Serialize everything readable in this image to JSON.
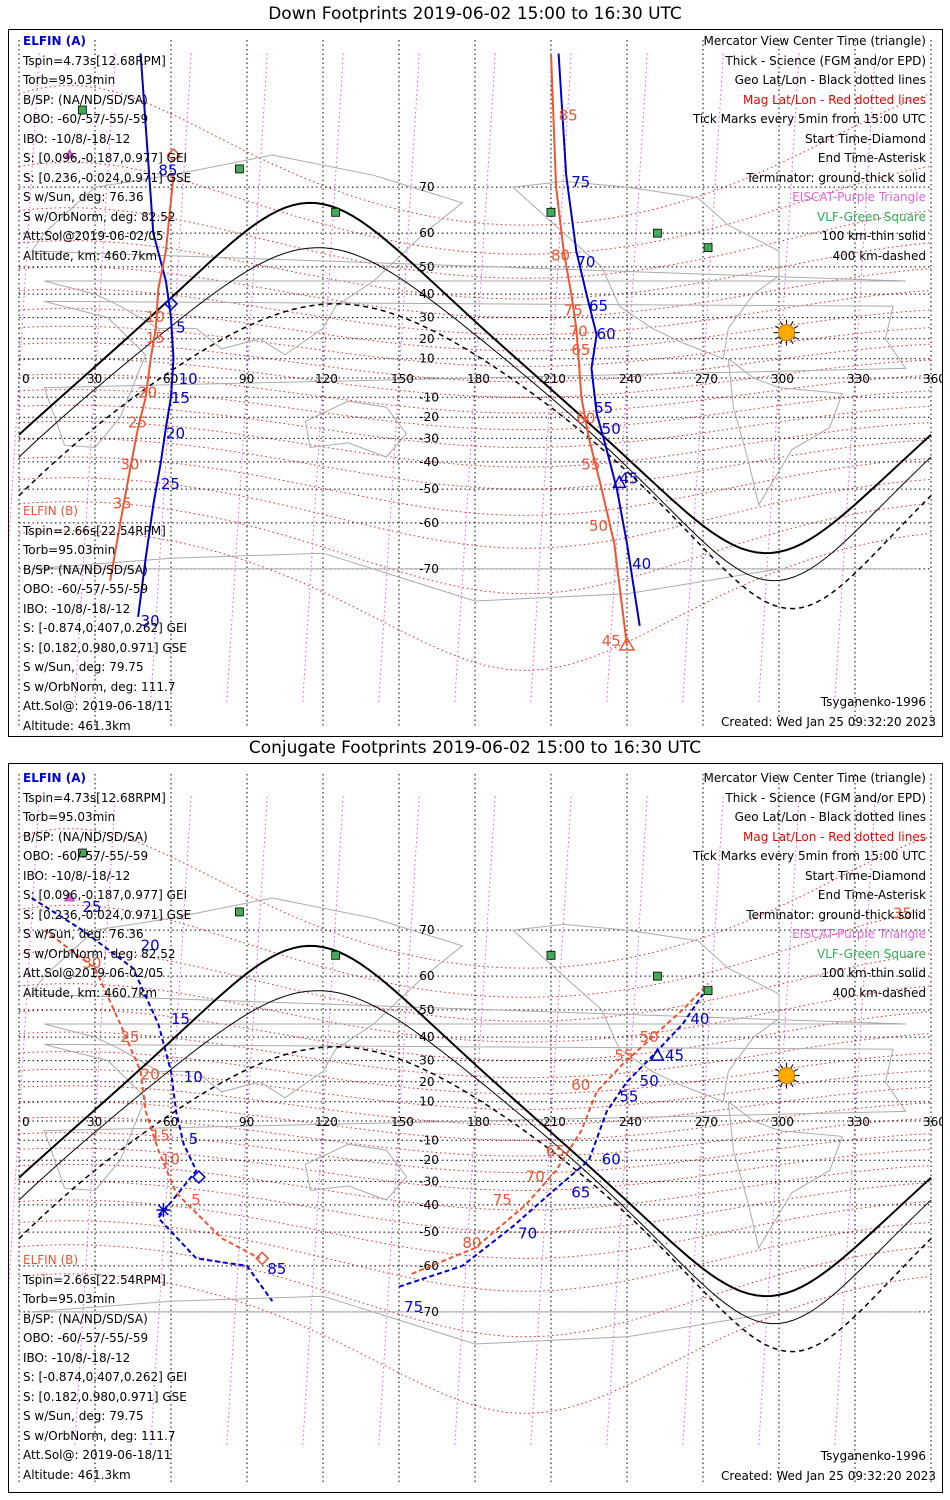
{
  "panels": [
    {
      "title": "Down Footprints 2019-06-02 15:00 to 16:30 UTC",
      "x_ticks": [
        "0",
        "30",
        "60",
        "90",
        "120",
        "150",
        "180",
        "210",
        "240",
        "270",
        "300",
        "330",
        "360"
      ],
      "y_ticks": [
        "70",
        "60",
        "50",
        "40",
        "30",
        "20",
        "10",
        "-10",
        "-20",
        "-30",
        "-40",
        "-50",
        "-60",
        "-70"
      ],
      "elfin_a": {
        "name": "ELFIN (A)",
        "lines": [
          "Tspin=4.73s[12.68RPM]",
          "Torb=95.03min",
          "B/SP: (NA/ND/SD/SA)",
          "OBO: -60/-57/-55/-59",
          "IBO: -10/8/-18/-12",
          "S: [0.096,-0.187,0.977] GEI",
          "S: [0.236,-0.024,0.971] GSE",
          "S w/Sun, deg: 76.36",
          "S w/OrbNorm, deg: 82.52",
          "Att.Sol@2019-06-02/05",
          "Altitude, km: 460.7km"
        ]
      },
      "elfin_b": {
        "name": "ELFIN (B)",
        "lines": [
          "Tspin=2.66s[22.54RPM]",
          "Torb=95.03min",
          "B/SP: (NA/ND/SD/SA)",
          "OBO: -60/-57/-55/-59",
          "IBO: -10/8/-18/-12",
          "S: [-0.874,0.407,0.262] GEI",
          "S: [0.182,0.980,0.971] GSE",
          "S w/Sun, deg: 79.75",
          "S w/OrbNorm, deg: 111.7",
          "Att.Sol@: 2019-06-18/11",
          "Altitude: 461.3km"
        ]
      },
      "legend": [
        {
          "text": "Mercator View Center Time (triangle)",
          "color": "#000000"
        },
        {
          "text": "Thick - Science (FGM and/or EPD)",
          "color": "#000000"
        },
        {
          "text": "Geo Lat/Lon - Black dotted lines",
          "color": "#000000"
        },
        {
          "text": "Mag Lat/Lon - Red dotted lines",
          "color": "#ee0000"
        },
        {
          "text": "Tick Marks every 5min from 15:00 UTC",
          "color": "#000000"
        },
        {
          "text": "Start Time-Diamond",
          "color": "#000000"
        },
        {
          "text": "End Time-Asterisk",
          "color": "#000000"
        },
        {
          "text": "Terminator: ground-thick solid",
          "color": "#000000"
        },
        {
          "text": "EISCAT-Purple Triangle",
          "color": "#dd66dd"
        },
        {
          "text": "VLF-Green Square",
          "color": "#33aa55"
        },
        {
          "text": "100 km-thin solid",
          "color": "#000000"
        },
        {
          "text": "400 km-dashed",
          "color": "#000000"
        }
      ],
      "footer_left": "Tsyganenko-1996",
      "footer_right": "Created: Wed Jan 25 09:32:20 2023"
    },
    {
      "title": "Conjugate Footprints 2019-06-02 15:00 to 16:30 UTC",
      "x_ticks": [
        "0",
        "30",
        "60",
        "90",
        "120",
        "150",
        "180",
        "210",
        "240",
        "270",
        "300",
        "330",
        "360"
      ],
      "y_ticks": [
        "70",
        "60",
        "50",
        "40",
        "30",
        "20",
        "10",
        "-10",
        "-20",
        "-30",
        "-40",
        "-50",
        "-60",
        "-70"
      ],
      "elfin_a": {
        "name": "ELFIN (A)",
        "lines": [
          "Tspin=4.73s[12.68RPM]",
          "Torb=95.03min",
          "B/SP: (NA/ND/SD/SA)",
          "OBO: -60/-57/-55/-59",
          "IBO: -10/8/-18/-12",
          "S: [0.096,-0.187,0.977] GEI",
          "S: [0.236,-0.024,0.971] GSE",
          "S w/Sun, deg: 76.36",
          "S w/OrbNorm, deg: 82.52",
          "Att.Sol@2019-06-02/05",
          "Altitude, km: 460.7km"
        ]
      },
      "elfin_b": {
        "name": "ELFIN (B)",
        "lines": [
          "Tspin=2.66s[22.54RPM]",
          "Torb=95.03min",
          "B/SP: (NA/ND/SD/SA)",
          "OBO: -60/-57/-55/-59",
          "IBO: -10/8/-18/-12",
          "S: [-0.874,0.407,0.262] GEI",
          "S: [0.182,0.980,0.971] GSE",
          "S w/Sun, deg: 79.75",
          "S w/OrbNorm, deg: 111.7",
          "Att.Sol@: 2019-06-18/11",
          "Altitude: 461.3km"
        ]
      },
      "legend": [
        {
          "text": "Mercator View Center Time (triangle)",
          "color": "#000000"
        },
        {
          "text": "Thick - Science (FGM and/or EPD)",
          "color": "#000000"
        },
        {
          "text": "Geo Lat/Lon - Black dotted lines",
          "color": "#000000"
        },
        {
          "text": "Mag Lat/Lon - Red dotted lines",
          "color": "#ee0000"
        },
        {
          "text": "Tick Marks every 5min from 15:00 UTC",
          "color": "#000000"
        },
        {
          "text": "Start Time-Diamond",
          "color": "#000000"
        },
        {
          "text": "End Time-Asterisk",
          "color": "#000000"
        },
        {
          "text": "Terminator: ground-thick solid",
          "color": "#000000"
        },
        {
          "text": "EISCAT-Purple Triangle",
          "color": "#dd66dd"
        },
        {
          "text": "VLF-Green Square",
          "color": "#33aa55"
        },
        {
          "text": "100 km-thin solid",
          "color": "#000000"
        },
        {
          "text": "400 km-dashed",
          "color": "#000000"
        }
      ],
      "footer_left": "Tsyganenko-1996",
      "footer_right": "Created: Wed Jan 25 09:32:20 2023"
    }
  ],
  "chart_data": [
    {
      "type": "scatter",
      "title": "Down Footprints 2019-06-02 15:00 to 16:30 UTC",
      "xlabel": "",
      "ylabel": "",
      "xlim": [
        0,
        360
      ],
      "ylim": [
        -80,
        80
      ],
      "grid": true,
      "legend_position": "top-right",
      "series": [
        {
          "name": "ELFIN (A)",
          "color": "#0000cc",
          "points": [
            [
              46,
              85
            ],
            [
              52,
              50
            ],
            [
              60,
              35
            ],
            [
              60,
              15
            ],
            [
              60,
              0
            ],
            [
              58,
              -10
            ],
            [
              57,
              -20
            ],
            [
              55,
              -30
            ],
            [
              53,
              -40
            ],
            [
              50,
              -55
            ],
            [
              47,
              -70
            ],
            [
              45,
              -78
            ]
          ],
          "tick_labels": [
            {
              "t": "85",
              "lon": 55,
              "lat": 72
            },
            {
              "t": "5",
              "lon": 62,
              "lat": 23
            },
            {
              "t": "10",
              "lon": 63,
              "lat": -3
            },
            {
              "t": "15",
              "lon": 60,
              "lat": -13
            },
            {
              "t": "20",
              "lon": 58,
              "lat": -30
            },
            {
              "t": "25",
              "lon": 56,
              "lat": -50
            },
            {
              "t": "30",
              "lon": 48,
              "lat": -78
            },
            {
              "t": "75",
              "lon": 218,
              "lat": 70
            },
            {
              "t": "70",
              "lon": 220,
              "lat": 50
            },
            {
              "t": "65",
              "lon": 225,
              "lat": 33
            },
            {
              "t": "60",
              "lon": 228,
              "lat": 20
            },
            {
              "t": "55",
              "lon": 227,
              "lat": -18
            },
            {
              "t": "50",
              "lon": 230,
              "lat": -28
            },
            {
              "t": "45",
              "lon": 237,
              "lat": -48
            },
            {
              "t": "40",
              "lon": 242,
              "lat": -70
            }
          ]
        },
        {
          "name": "ELFIN (B)",
          "color": "#ee5533",
          "points": [
            [
              60,
              66
            ],
            [
              58,
              55
            ],
            [
              55,
              40
            ],
            [
              52,
              25
            ],
            [
              50,
              15
            ],
            [
              45,
              0
            ],
            [
              42,
              -20
            ],
            [
              39,
              -40
            ],
            [
              35,
              -60
            ],
            [
              32,
              -75
            ]
          ],
          "tick_labels": [
            {
              "t": "10",
              "lon": 50,
              "lat": 28
            },
            {
              "t": "15",
              "lon": 50,
              "lat": 18
            },
            {
              "t": "20",
              "lon": 47,
              "lat": -10
            },
            {
              "t": "25",
              "lon": 43,
              "lat": -25
            },
            {
              "t": "30",
              "lon": 40,
              "lat": -43
            },
            {
              "t": "35",
              "lon": 37,
              "lat": -56
            },
            {
              "t": "85",
              "lon": 213,
              "lat": 79
            },
            {
              "t": "80",
              "lon": 210,
              "lat": 52
            },
            {
              "t": "75",
              "lon": 215,
              "lat": 31
            },
            {
              "t": "70",
              "lon": 217,
              "lat": 21
            },
            {
              "t": "65",
              "lon": 218,
              "lat": 12
            },
            {
              "t": "60",
              "lon": 220,
              "lat": -23
            },
            {
              "t": "55",
              "lon": 222,
              "lat": -43
            },
            {
              "t": "50",
              "lon": 225,
              "lat": -62
            },
            {
              "t": "45",
              "lon": 230,
              "lat": -80
            }
          ]
        }
      ]
    },
    {
      "type": "scatter",
      "title": "Conjugate Footprints 2019-06-02 15:00 to 16:30 UTC",
      "xlabel": "",
      "ylabel": "",
      "xlim": [
        0,
        360
      ],
      "ylim": [
        -80,
        80
      ],
      "grid": true,
      "legend_position": "top-right",
      "series": [
        {
          "name": "ELFIN (A)",
          "color": "#0000cc",
          "tick_labels": [
            {
              "t": "25",
              "lon": 25,
              "lat": 73
            },
            {
              "t": "20",
              "lon": 48,
              "lat": 66
            },
            {
              "t": "15",
              "lon": 60,
              "lat": 45
            },
            {
              "t": "10",
              "lon": 65,
              "lat": 20
            },
            {
              "t": "5",
              "lon": 67,
              "lat": -12
            },
            {
              "t": "85",
              "lon": 98,
              "lat": -62
            },
            {
              "t": "75",
              "lon": 152,
              "lat": -70
            },
            {
              "t": "70",
              "lon": 197,
              "lat": -52
            },
            {
              "t": "65",
              "lon": 218,
              "lat": -37
            },
            {
              "t": "60",
              "lon": 230,
              "lat": -22
            },
            {
              "t": "55",
              "lon": 237,
              "lat": 10
            },
            {
              "t": "50",
              "lon": 245,
              "lat": 18
            },
            {
              "t": "45",
              "lon": 255,
              "lat": 30
            },
            {
              "t": "40",
              "lon": 265,
              "lat": 45
            }
          ]
        },
        {
          "name": "ELFIN (B)",
          "color": "#ee5533",
          "tick_labels": [
            {
              "t": "30",
              "lon": 25,
              "lat": 62
            },
            {
              "t": "25",
              "lon": 40,
              "lat": 38
            },
            {
              "t": "20",
              "lon": 48,
              "lat": 21
            },
            {
              "t": "15",
              "lon": 52,
              "lat": -10
            },
            {
              "t": "10",
              "lon": 56,
              "lat": -22
            },
            {
              "t": "5",
              "lon": 68,
              "lat": -40
            },
            {
              "t": "80",
              "lon": 175,
              "lat": -55
            },
            {
              "t": "75",
              "lon": 187,
              "lat": -40
            },
            {
              "t": "70",
              "lon": 200,
              "lat": -30
            },
            {
              "t": "65",
              "lon": 208,
              "lat": -18
            },
            {
              "t": "60",
              "lon": 218,
              "lat": 16
            },
            {
              "t": "55",
              "lon": 235,
              "lat": 30
            },
            {
              "t": "50",
              "lon": 245,
              "lat": 38
            },
            {
              "t": "35",
              "lon": 345,
              "lat": 72
            }
          ]
        }
      ]
    }
  ]
}
